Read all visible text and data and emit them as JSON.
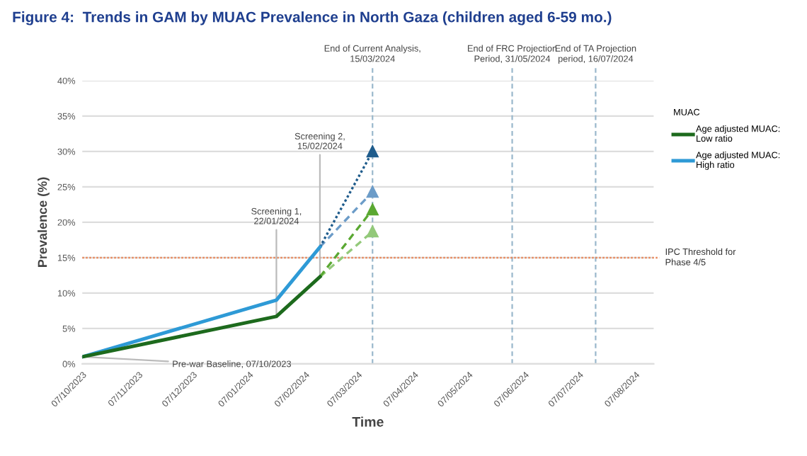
{
  "chart_data": {
    "type": "line",
    "title": "Figure 4:  Trends in GAM by MUAC Prevalence in North Gaza (children aged 6-59 mo.)",
    "xlabel": "Time",
    "ylabel": "Prevalence (%)",
    "legend_title": "MUAC",
    "series": [
      {
        "name": "Age adjusted MUAC:\nLow ratio",
        "color": "#1d6a1d",
        "x": [
          "2023-10-07",
          "2024-01-22",
          "2024-02-15"
        ],
        "values": [
          1.0,
          6.7,
          12.3
        ]
      },
      {
        "name": "Age adjusted MUAC:\nHigh ratio",
        "color": "#2e9ad6",
        "x": [
          "2023-10-07",
          "2024-01-22",
          "2024-02-15"
        ],
        "values": [
          1.0,
          9.0,
          16.5
        ]
      },
      {
        "color": "#1f5c8c",
        "x": [
          "2024-02-15",
          "2024-03-15"
        ],
        "values": [
          16.5,
          30.0
        ],
        "line_style": "dotted",
        "marker": "triangle"
      },
      {
        "color": "#6c9cc8",
        "x": [
          "2024-02-15",
          "2024-03-15"
        ],
        "values": [
          16.5,
          24.3
        ],
        "line_style": "dashed",
        "marker": "triangle"
      },
      {
        "color": "#5aa832",
        "x": [
          "2024-02-15",
          "2024-03-15"
        ],
        "values": [
          12.3,
          21.8
        ],
        "line_style": "dashed",
        "marker": "triangle"
      },
      {
        "color": "#93c97a",
        "x": [
          "2024-02-15",
          "2024-03-15"
        ],
        "values": [
          12.3,
          18.7
        ],
        "line_style": "dashed",
        "marker": "triangle"
      }
    ],
    "xlim": [
      "2023-10-07",
      "2024-08-17"
    ],
    "xticks": [
      {
        "value": "2023-10-07",
        "label": "07/10/2023"
      },
      {
        "value": "2023-11-07",
        "label": "07/11/2023"
      },
      {
        "value": "2023-12-07",
        "label": "07/12/2023"
      },
      {
        "value": "2024-01-07",
        "label": "07/01/2024"
      },
      {
        "value": "2024-02-07",
        "label": "07/02/2024"
      },
      {
        "value": "2024-03-07",
        "label": "07/03/2024"
      },
      {
        "value": "2024-04-07",
        "label": "07/04/2024"
      },
      {
        "value": "2024-05-07",
        "label": "07/05/2024"
      },
      {
        "value": "2024-06-07",
        "label": "07/06/2024"
      },
      {
        "value": "2024-07-07",
        "label": "07/07/2024"
      },
      {
        "value": "2024-08-07",
        "label": "07/08/2024"
      }
    ],
    "ylim": [
      0,
      40
    ],
    "yticks": [
      {
        "value": 0,
        "label": "0%"
      },
      {
        "value": 5,
        "label": "5%"
      },
      {
        "value": 10,
        "label": "10%"
      },
      {
        "value": 15,
        "label": "15%"
      },
      {
        "value": 20,
        "label": "20%"
      },
      {
        "value": 25,
        "label": "25%"
      },
      {
        "value": 30,
        "label": "30%"
      },
      {
        "value": 35,
        "label": "35%"
      },
      {
        "value": 40,
        "label": "40%"
      }
    ],
    "ref_lines": [
      {
        "axis": "x",
        "value": "2024-03-15",
        "label": "End of Current Analysis,\n15/03/2024",
        "color": "#9ab8cc",
        "line_style": "dashed"
      },
      {
        "axis": "x",
        "value": "2024-05-31",
        "label": "End of FRC Projection\nPeriod, 31/05/2024",
        "color": "#9ab8cc",
        "line_style": "dashed"
      },
      {
        "axis": "x",
        "value": "2024-07-16",
        "label": "End of TA Projection\nperiod, 16/07/2024",
        "color": "#9ab8cc",
        "line_style": "dashed"
      },
      {
        "axis": "y",
        "value": 15,
        "label": "IPC Threshold for\nPhase 4/5",
        "color": "#e8875a",
        "line_style": "dotted"
      }
    ],
    "annotations": [
      {
        "text": "Screening 1,\n22/01/2024",
        "x": "2024-01-22",
        "y": 6.7
      },
      {
        "text": "Screening 2,\n15/02/2024",
        "x": "2024-02-15",
        "y": 12.3
      },
      {
        "text": "Pre-war Baseline, 07/10/2023",
        "x": "2023-10-07",
        "y": 1.0
      }
    ],
    "grid": "y",
    "legend": "right",
    "marker": "none",
    "line_style": "solid"
  }
}
